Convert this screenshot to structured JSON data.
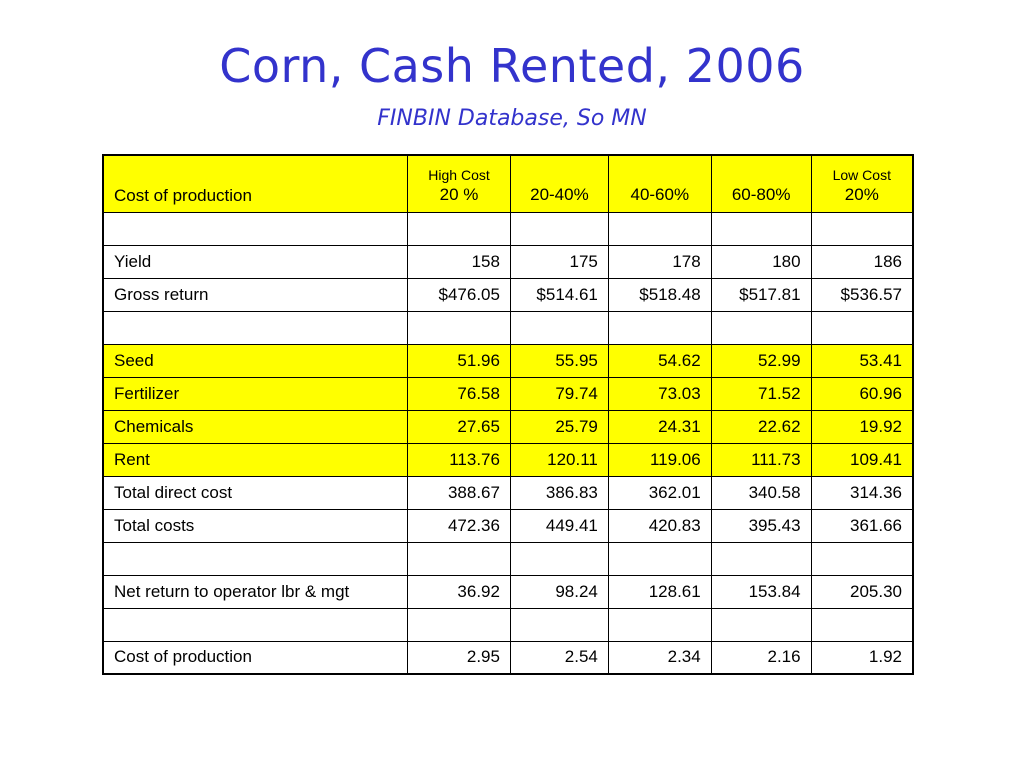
{
  "title": "Corn, Cash Rented, 2006",
  "subtitle": "FINBIN Database, So MN",
  "table": {
    "header": {
      "label": "Cost of production",
      "cols": [
        {
          "top": "High Cost",
          "bottom": "20 %"
        },
        {
          "top": "",
          "bottom": "20-40%"
        },
        {
          "top": "",
          "bottom": "40-60%"
        },
        {
          "top": "",
          "bottom": "60-80%"
        },
        {
          "top": "Low Cost",
          "bottom": "20%"
        }
      ]
    },
    "rows": [
      {
        "label": "",
        "values": [
          "",
          "",
          "",
          "",
          ""
        ]
      },
      {
        "label": "Yield",
        "values": [
          "158",
          "175",
          "178",
          "180",
          "186"
        ]
      },
      {
        "label": "Gross return",
        "values": [
          "$476.05",
          "$514.61",
          "$518.48",
          "$517.81",
          "$536.57"
        ]
      },
      {
        "label": "",
        "values": [
          "",
          "",
          "",
          "",
          ""
        ]
      },
      {
        "label": "Seed",
        "values": [
          "51.96",
          "55.95",
          "54.62",
          "52.99",
          "53.41"
        ]
      },
      {
        "label": "Fertilizer",
        "values": [
          "76.58",
          "79.74",
          "73.03",
          "71.52",
          "60.96"
        ]
      },
      {
        "label": "Chemicals",
        "values": [
          "27.65",
          "25.79",
          "24.31",
          "22.62",
          "19.92"
        ]
      },
      {
        "label": "Rent",
        "values": [
          "113.76",
          "120.11",
          "119.06",
          "111.73",
          "109.41"
        ]
      },
      {
        "label": "Total direct cost",
        "values": [
          "388.67",
          "386.83",
          "362.01",
          "340.58",
          "314.36"
        ]
      },
      {
        "label": "Total costs",
        "values": [
          "472.36",
          "449.41",
          "420.83",
          "395.43",
          "361.66"
        ]
      },
      {
        "label": "",
        "values": [
          "",
          "",
          "",
          "",
          ""
        ]
      },
      {
        "label": "Net return to operator lbr & mgt",
        "values": [
          "36.92",
          "98.24",
          "128.61",
          "153.84",
          "205.30"
        ]
      },
      {
        "label": "",
        "values": [
          "",
          "",
          "",
          "",
          ""
        ]
      },
      {
        "label": "Cost of production",
        "values": [
          "2.95",
          "2.54",
          "2.34",
          "2.16",
          "1.92"
        ]
      }
    ]
  },
  "colors": {
    "title": "#3333cc",
    "highlight": "#ffff00",
    "border": "#000000"
  }
}
